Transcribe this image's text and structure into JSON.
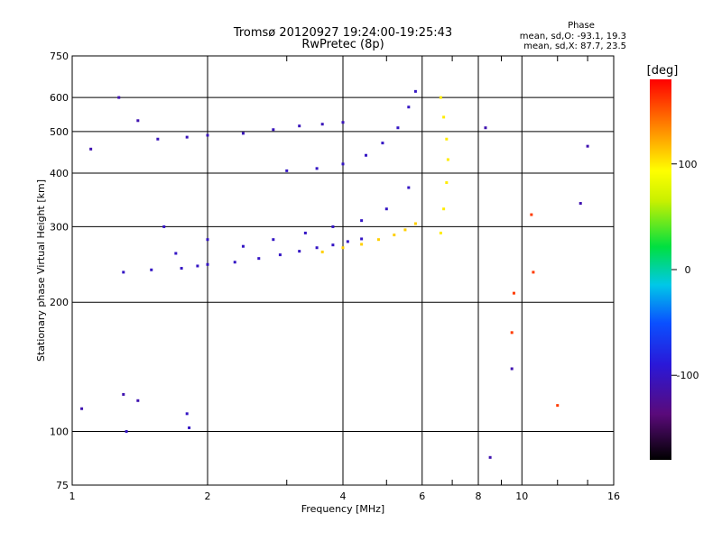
{
  "chart_data": {
    "type": "scatter",
    "title": "Tromsø 20120927 19:24:00-19:25:43",
    "subtitle": "RwPretec (8p)",
    "xlabel": "Frequency [MHz]",
    "ylabel": "Stationary phase Virtual Height [km]",
    "x_scale": "log",
    "y_scale": "log",
    "xlim": [
      1,
      16
    ],
    "ylim": [
      75,
      750
    ],
    "x_ticks": [
      "1",
      "2",
      "4",
      "6",
      "8",
      "10",
      "16"
    ],
    "x_tick_values": [
      1,
      2,
      4,
      6,
      8,
      10,
      16
    ],
    "y_ticks": [
      "75",
      "100",
      "200",
      "300",
      "400",
      "500",
      "600",
      "750"
    ],
    "y_tick_values": [
      75,
      100,
      200,
      300,
      400,
      500,
      600,
      750
    ],
    "grid": true,
    "phase_info": {
      "header": "Phase",
      "line_o": "mean, sd,O: -93.1, 19.3",
      "line_x": "mean, sd,X: 87.7, 23.5"
    },
    "colorbar": {
      "label": "[deg]",
      "range": [
        -180,
        180
      ],
      "ticks": [
        "100",
        "0",
        "-100"
      ],
      "tick_values": [
        100,
        0,
        -100
      ]
    },
    "traces": [
      {
        "name": "",
        "phase": -100,
        "points": [
          [
            1.75,
            240
          ],
          [
            1.9,
            243
          ],
          [
            2.0,
            245
          ],
          [
            2.3,
            248
          ],
          [
            2.6,
            253
          ],
          [
            2.9,
            258
          ],
          [
            3.2,
            263
          ],
          [
            3.5,
            268
          ],
          [
            3.8,
            272
          ],
          [
            4.1,
            277
          ],
          [
            4.4,
            281
          ]
        ]
      },
      {
        "name": "",
        "phase": 110,
        "points": [
          [
            3.6,
            262
          ],
          [
            4.0,
            268
          ],
          [
            4.4,
            273
          ],
          [
            4.8,
            280
          ],
          [
            5.2,
            287
          ],
          [
            5.5,
            295
          ],
          [
            5.8,
            305
          ]
        ]
      },
      {
        "name": "",
        "phase": -100,
        "points": [
          [
            3.0,
            405
          ],
          [
            3.5,
            410
          ],
          [
            4.0,
            420
          ],
          [
            4.5,
            440
          ],
          [
            4.9,
            470
          ],
          [
            5.3,
            510
          ],
          [
            5.6,
            570
          ],
          [
            5.8,
            620
          ]
        ]
      },
      {
        "name": "",
        "phase": -105,
        "points": [
          [
            1.55,
            480
          ],
          [
            1.8,
            485
          ],
          [
            2.0,
            490
          ],
          [
            2.4,
            495
          ],
          [
            2.8,
            505
          ],
          [
            3.2,
            515
          ],
          [
            3.6,
            520
          ],
          [
            4.0,
            525
          ]
        ]
      },
      {
        "name": "",
        "phase": 100,
        "points": [
          [
            6.6,
            290
          ],
          [
            6.7,
            330
          ],
          [
            6.8,
            380
          ],
          [
            6.85,
            430
          ],
          [
            6.8,
            480
          ],
          [
            6.7,
            540
          ],
          [
            6.6,
            600
          ]
        ]
      },
      {
        "name": "",
        "phase": -100,
        "points": [
          [
            1.3,
            235
          ],
          [
            1.5,
            238
          ],
          [
            1.6,
            300
          ],
          [
            1.7,
            260
          ],
          [
            2.0,
            280
          ],
          [
            2.4,
            270
          ],
          [
            2.8,
            280
          ],
          [
            3.3,
            290
          ],
          [
            3.8,
            300
          ],
          [
            4.4,
            310
          ],
          [
            5.0,
            330
          ],
          [
            5.6,
            370
          ]
        ]
      },
      {
        "name": "",
        "phase": -100,
        "points": [
          [
            1.32,
            100
          ],
          [
            1.8,
            110
          ],
          [
            1.82,
            102
          ]
        ]
      },
      {
        "name": "",
        "phase": 160,
        "points": [
          [
            10.5,
            320
          ],
          [
            10.6,
            235
          ],
          [
            9.6,
            210
          ],
          [
            9.5,
            170
          ],
          [
            12.0,
            115
          ]
        ]
      },
      {
        "name": "",
        "phase": -110,
        "points": [
          [
            1.05,
            113
          ],
          [
            1.3,
            122
          ],
          [
            1.4,
            118
          ],
          [
            1.27,
            600
          ],
          [
            1.4,
            530
          ],
          [
            1.1,
            455
          ],
          [
            14.0,
            462
          ],
          [
            8.3,
            510
          ],
          [
            8.5,
            87
          ],
          [
            9.5,
            140
          ],
          [
            13.5,
            340
          ]
        ]
      }
    ]
  }
}
